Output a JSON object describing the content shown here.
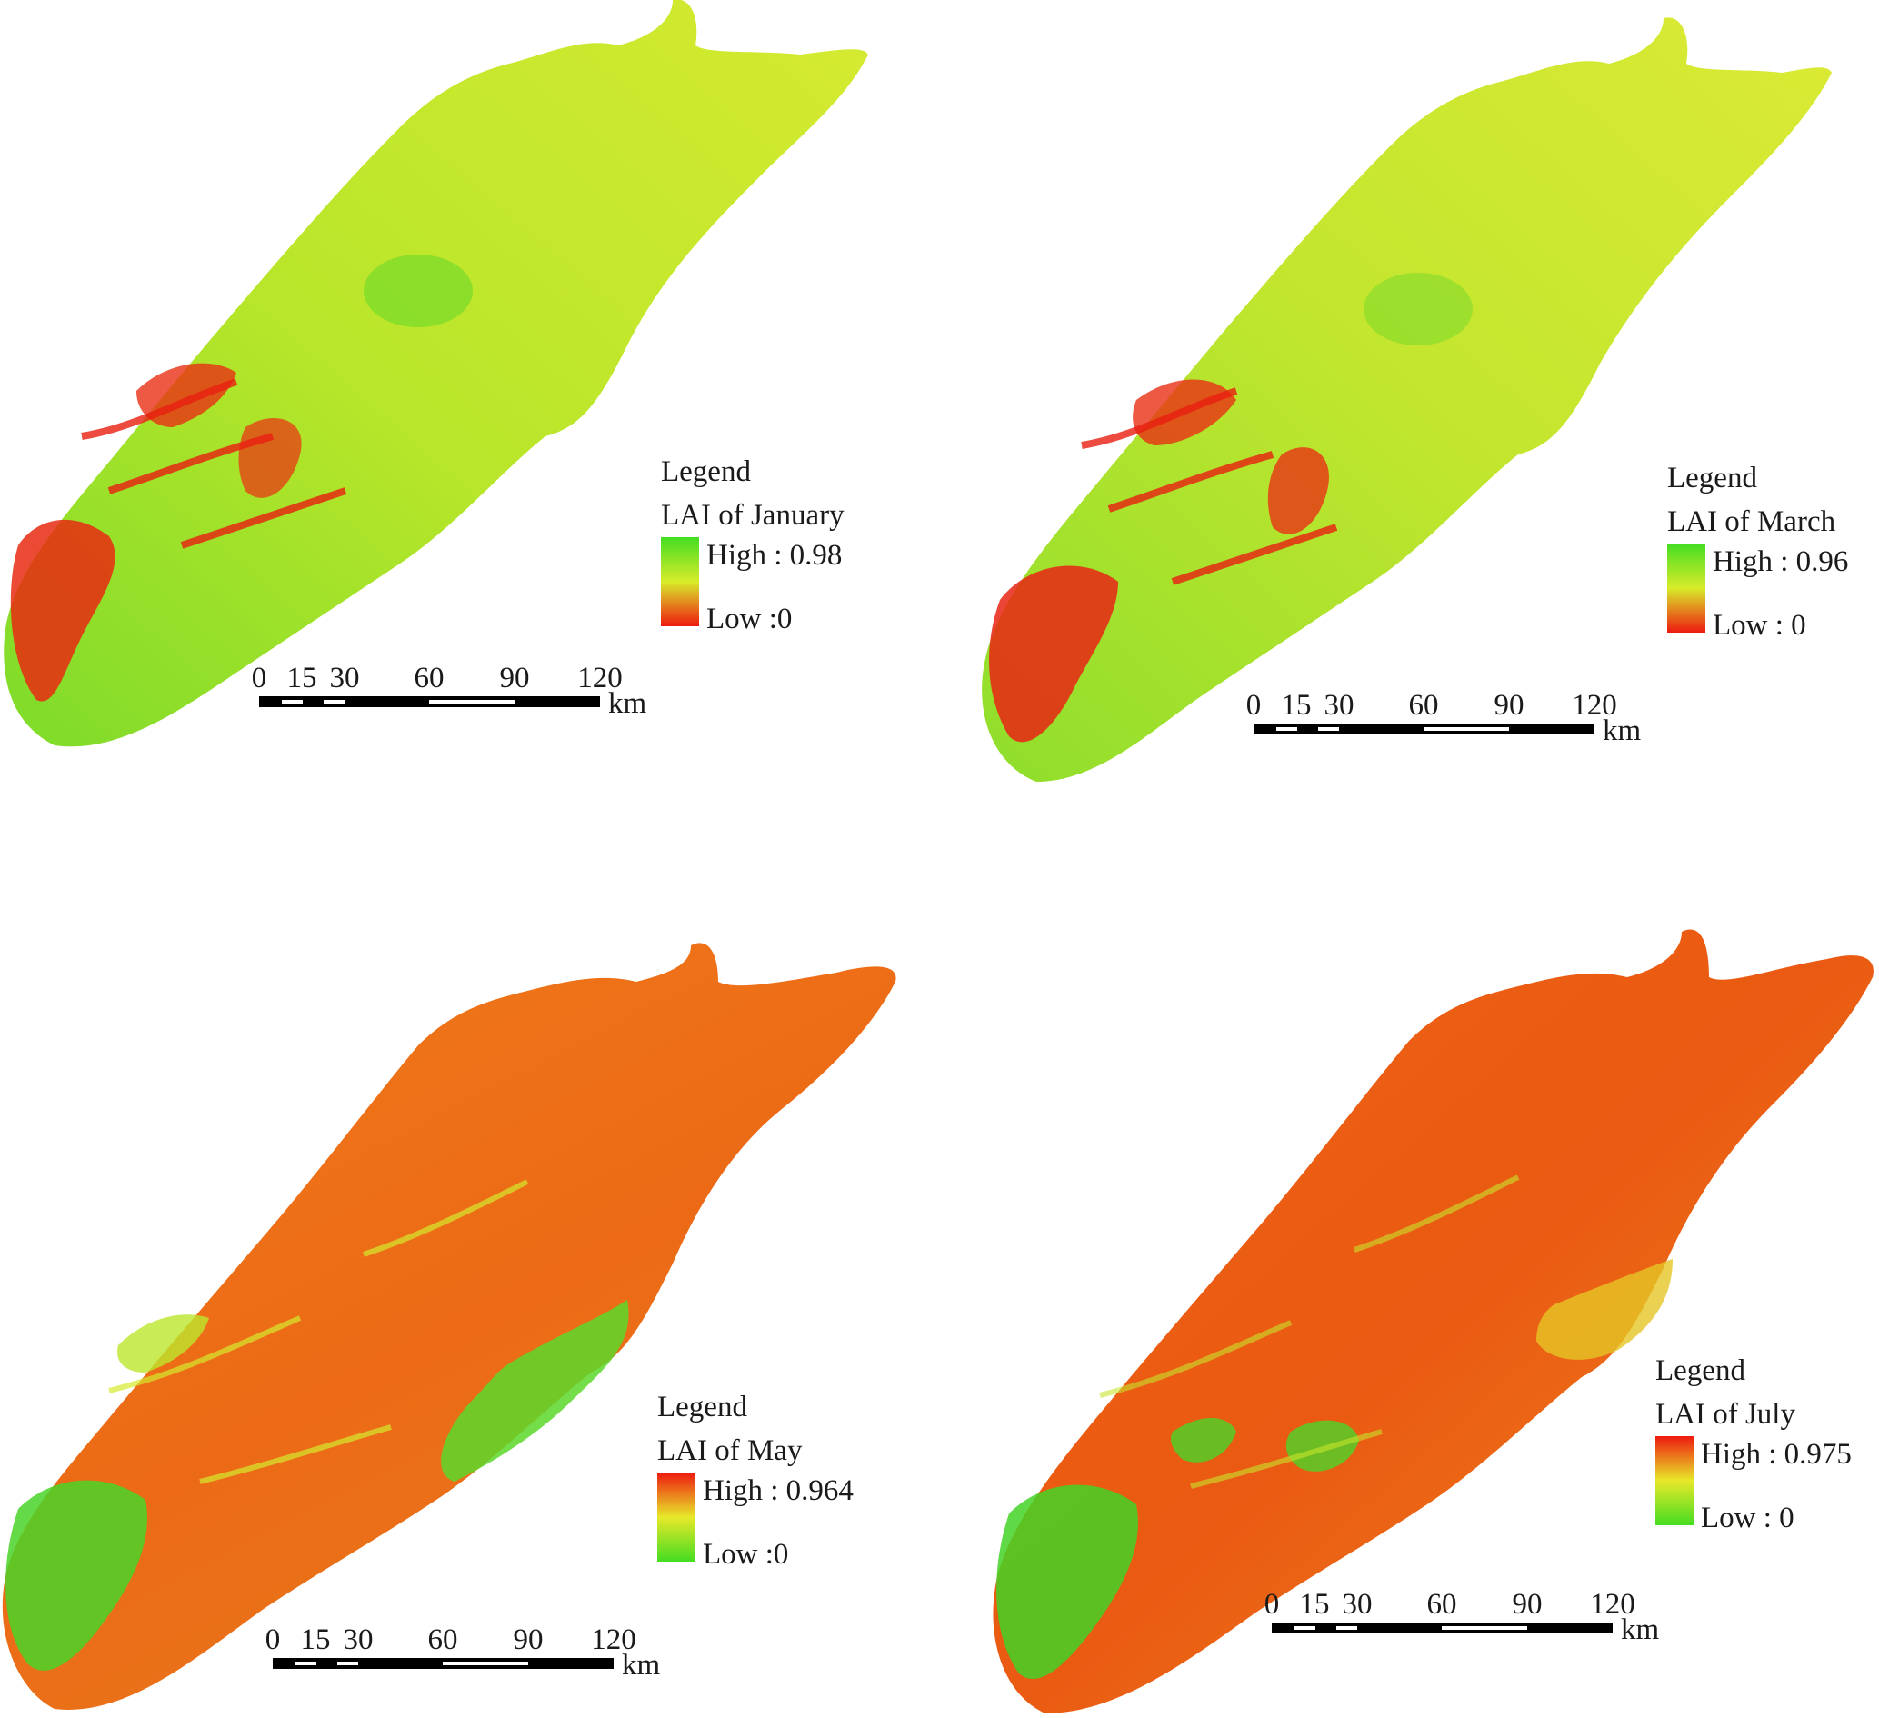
{
  "panels": [
    {
      "id": "january",
      "legend_title": "Legend",
      "legend_name": "LAI of January",
      "high_label": "High : 0.98",
      "low_label": "Low :0",
      "high_color": "#44dd22",
      "low_color": "#ee1a10",
      "scale_ticks": [
        "0",
        "15",
        "30",
        "60",
        "90",
        "120"
      ],
      "scale_unit": "km"
    },
    {
      "id": "march",
      "legend_title": "Legend",
      "legend_name": "LAI of March",
      "high_label": "High : 0.96",
      "low_label": "Low : 0",
      "high_color": "#44dd22",
      "low_color": "#ee1a10",
      "scale_ticks": [
        "0",
        "15",
        "30",
        "60",
        "90",
        "120"
      ],
      "scale_unit": "km"
    },
    {
      "id": "may",
      "legend_title": "Legend",
      "legend_name": "LAI of May",
      "high_label": "High : 0.964",
      "low_label": "Low :0",
      "high_color": "#ee1a10",
      "low_color": "#44dd22",
      "scale_ticks": [
        "0",
        "15",
        "30",
        "60",
        "90",
        "120"
      ],
      "scale_unit": "km"
    },
    {
      "id": "july",
      "legend_title": "Legend",
      "legend_name": "LAI of July",
      "high_label": "High : 0.975",
      "low_label": "Low : 0",
      "high_color": "#ee1a10",
      "low_color": "#44dd22",
      "scale_ticks": [
        "0",
        "15",
        "30",
        "60",
        "90",
        "120"
      ],
      "scale_unit": "km"
    }
  ]
}
